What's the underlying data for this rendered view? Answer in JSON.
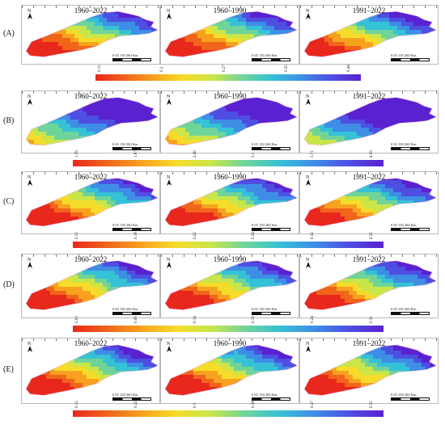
{
  "rows": [
    {
      "label": "(A)",
      "periods": [
        "1960–2022",
        "1960–1990",
        "1991–2022"
      ],
      "colorbar_ticks": [
        "0.11",
        "0.2",
        "0.27",
        "0.35",
        "0.44"
      ]
    },
    {
      "label": "(B)",
      "periods": [
        "1960–2022",
        "1960–1990",
        "1991–2022"
      ],
      "colorbar_ticks": [
        "1.59",
        "1.87",
        "2.49",
        "3.1",
        "3.71",
        "4.59"
      ]
    },
    {
      "label": "(C)",
      "periods": [
        "1960–2022",
        "1960–1990",
        "1991–2022"
      ],
      "colorbar_ticks": [
        "0.15",
        "0.18",
        "0.22",
        "0.26",
        "0.32",
        "0.35"
      ]
    },
    {
      "label": "(D)",
      "periods": [
        "1960–2022",
        "1960–1990",
        "1991–2022"
      ],
      "colorbar_ticks": [
        "0.03",
        "0.09",
        "0.14",
        "0.19",
        "0.24",
        "0.31"
      ]
    },
    {
      "label": "(E)",
      "periods": [
        "1960–2022",
        "1960–1990",
        "1991–2022"
      ],
      "colorbar_ticks": [
        "0.12",
        "0.22",
        "0.3",
        "0.38",
        "0.47",
        "0.55"
      ]
    }
  ],
  "scale_text": "0  65  130       260 Km",
  "north_letter": "N",
  "palette": [
    "#e8281c",
    "#f0651a",
    "#f7a21f",
    "#f6dc2a",
    "#c8e64a",
    "#6fd49a",
    "#35c1d6",
    "#3f8ee6",
    "#4e4fe2",
    "#5a21d1"
  ]
}
